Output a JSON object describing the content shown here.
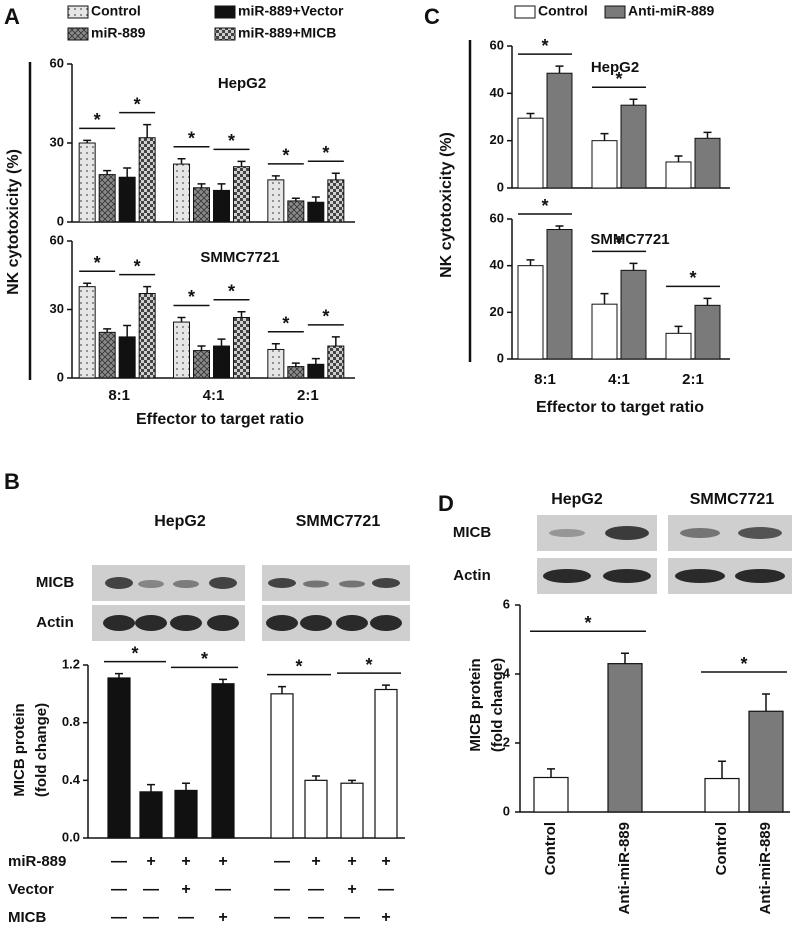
{
  "chart_data": [
    {
      "type": "bar",
      "panel": "A",
      "ylabel": "NK cytotoxicity (%)",
      "xlabel": "Effector to target ratio",
      "categories": [
        "8:1",
        "4:1",
        "2:1"
      ],
      "series": [
        {
          "name": "Control",
          "color": "#e6e6e6"
        },
        {
          "name": "miR-889",
          "color": "#8a8a8a"
        },
        {
          "name": "miR-889+Vector",
          "color": "#111111"
        },
        {
          "name": "miR-889+MICB",
          "color": "#d0d0d0"
        }
      ],
      "ylim": [
        0,
        60
      ],
      "yticks": [
        0,
        30,
        60
      ],
      "subplots": [
        {
          "title": "HepG2",
          "values": [
            [
              30,
              22,
              16
            ],
            [
              18,
              13,
              8
            ],
            [
              17,
              12,
              7.5
            ],
            [
              32,
              21,
              16
            ]
          ],
          "errors": [
            [
              1,
              2,
              1.5
            ],
            [
              1.5,
              1.5,
              1
            ],
            [
              3.5,
              2.5,
              2
            ],
            [
              5,
              2,
              2.5
            ]
          ],
          "annotations": [
            "*",
            "*",
            "*",
            "*",
            "*",
            "*"
          ]
        },
        {
          "title": "SMMC7721",
          "values": [
            [
              40,
              24.5,
              12.5
            ],
            [
              20,
              12,
              5
            ],
            [
              18,
              14,
              6
            ],
            [
              37,
              26.5,
              14
            ]
          ],
          "errors": [
            [
              1.5,
              2,
              2.5
            ],
            [
              1.5,
              2,
              1.5
            ],
            [
              5,
              3,
              2.5
            ],
            [
              3,
              2.5,
              4
            ]
          ],
          "annotations": [
            "*",
            "*",
            "*",
            "*",
            "*",
            "*"
          ]
        }
      ]
    },
    {
      "type": "bar",
      "panel": "B",
      "ylabel": [
        "MICB protein",
        "(fold change)"
      ],
      "blot_rows": [
        "MICB",
        "Actin"
      ],
      "series": [
        {
          "name": "HepG2",
          "color": "#111111",
          "values": [
            1.11,
            0.32,
            0.33,
            1.07
          ],
          "errors": [
            0.03,
            0.05,
            0.05,
            0.03
          ]
        },
        {
          "name": "SMMC7721",
          "color": "#ffffff",
          "values": [
            1.0,
            0.4,
            0.38,
            1.03
          ],
          "errors": [
            0.05,
            0.03,
            0.02,
            0.03
          ]
        }
      ],
      "ylim": [
        0,
        1.2
      ],
      "yticks": [
        {
          "value": 0,
          "label": "0.0"
        },
        0.4,
        0.8,
        1.2
      ],
      "annotations": [
        "*",
        "*",
        "*",
        "*"
      ],
      "treatments": [
        {
          "name": "miR-889",
          "signs": [
            "—",
            "+",
            "+",
            "+",
            "—",
            "+",
            "+",
            "+"
          ]
        },
        {
          "name": "Vector",
          "signs": [
            "—",
            "—",
            "+",
            "—",
            "—",
            "—",
            "+",
            "—"
          ]
        },
        {
          "name": "MICB",
          "signs": [
            "—",
            "—",
            "—",
            "+",
            "—",
            "—",
            "—",
            "+"
          ]
        }
      ]
    },
    {
      "type": "bar",
      "panel": "C",
      "ylabel": "NK cytotoxicity (%)",
      "xlabel": "Effector to target ratio",
      "categories": [
        "8:1",
        "4:1",
        "2:1"
      ],
      "series": [
        {
          "name": "Control",
          "color": "#ffffff"
        },
        {
          "name": "Anti-miR-889",
          "color": "#7a7a7a"
        }
      ],
      "ylim": [
        0,
        60
      ],
      "yticks": [
        0,
        20,
        40,
        60
      ],
      "subplots": [
        {
          "title": "HepG2",
          "values": [
            [
              29.5,
              20,
              11
            ],
            [
              48.5,
              35,
              21
            ]
          ],
          "errors": [
            [
              2,
              3,
              2.5
            ],
            [
              3,
              2.5,
              2.5
            ]
          ],
          "annotations": [
            "*",
            "*"
          ]
        },
        {
          "title": "SMMC7721",
          "values": [
            [
              40,
              23.5,
              11
            ],
            [
              55.5,
              38,
              23
            ]
          ],
          "errors": [
            [
              2.5,
              4.5,
              3
            ],
            [
              1.5,
              3,
              3
            ]
          ],
          "annotations": [
            "*",
            "*",
            "*"
          ]
        }
      ]
    },
    {
      "type": "bar",
      "panel": "D",
      "ylabel": [
        "MICB protein",
        "(fold change)"
      ],
      "blot_rows": [
        "MICB",
        "Actin"
      ],
      "categories": [
        "Control",
        "Anti-miR-889"
      ],
      "colors": [
        "#ffffff",
        "#7a7a7a"
      ],
      "series": [
        {
          "name": "HepG2",
          "values": [
            1.0,
            4.3
          ],
          "errors": [
            0.25,
            0.3
          ]
        },
        {
          "name": "SMMC7721",
          "values": [
            0.97,
            2.92
          ],
          "errors": [
            0.5,
            0.5
          ]
        }
      ],
      "ylim": [
        0,
        6
      ],
      "yticks": [
        0,
        2,
        4,
        6
      ],
      "annotations": [
        "*",
        "*"
      ]
    }
  ]
}
